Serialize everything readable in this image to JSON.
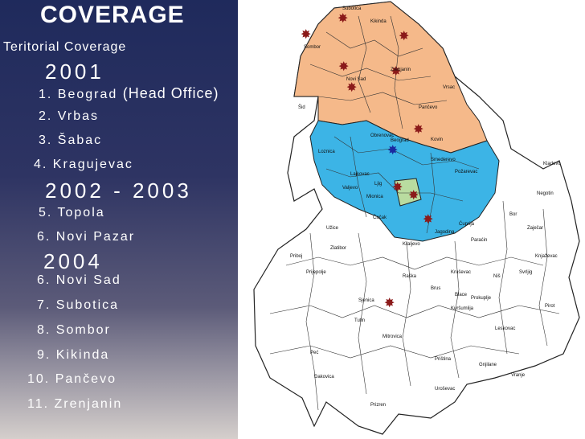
{
  "title": "COVERAGE",
  "subtitle": "Teritorial Coverage",
  "years": {
    "y2001": "2001",
    "y2002": "2002 - 2003",
    "y2004": "2004"
  },
  "offices": [
    {
      "num": "1.",
      "name": "Beograd",
      "note": "(Head Office)"
    },
    {
      "num": "2.",
      "name": "Vrbas"
    },
    {
      "num": "3.",
      "name": "Šabac"
    },
    {
      "num": "4.",
      "name": "Kragujevac"
    },
    {
      "num": "5.",
      "name": "Topola"
    },
    {
      "num": "6.",
      "name": "Novi Pazar"
    },
    {
      "num": "6.",
      "name": "Novi Sad"
    },
    {
      "num": "7.",
      "name": "Subotica"
    },
    {
      "num": "8.",
      "name": "Sombor"
    },
    {
      "num": "9.",
      "name": "Kikinda"
    },
    {
      "num": "10.",
      "name": "Pančevo"
    },
    {
      "num": "11.",
      "name": "Zrenjanin"
    }
  ],
  "map_labels": {
    "kikinda": "Kikinda",
    "zrenjanin": "Zrenjanin",
    "vrsac": "Vrsac",
    "sid": "Šid",
    "pancevo": "Pančevo",
    "kovin": "Kovin",
    "obrenovac": "Obrenovac",
    "smederevo": "Smederevo",
    "pozarevac": "Požarevac",
    "valjevo": "Valjevo",
    "kladovo": "Kladovo",
    "negotin": "Negotin",
    "zajecar": "Zaječar",
    "bor": "Bor",
    "uzice": "Užice",
    "cacak": "Čačak",
    "kraljevo": "Kraljevo",
    "krusevac": "Kruševac",
    "nis": "Niš",
    "pirot": "Pirot",
    "leskovac": "Leskovac",
    "vranje": "Vranje",
    "pristina": "Priština",
    "prizren": "Prizren",
    "pec": "Peć",
    "tutin": "Tutin",
    "sjenica": "Sjenica",
    "priboj": "Priboj",
    "prijepolje": "Prijepolje",
    "zlatibor": "Zlatibor",
    "raska": "Raška",
    "brus": "Brus",
    "blace": "Blace",
    "kursumlija": "Kuršumlija",
    "prokuplje": "Prokuplje",
    "mionica": "Mionica",
    "lajkovac": "Lajkovac",
    "ljig": "Ljig",
    "loznica": "Loznica",
    "paracin": "Paraćin",
    "cuprija": "Ćuprija",
    "jagodina": "Jagodina",
    "knjazevac": "Knjaževac",
    "svrljig": "Svrljig",
    "mitrovica": "Mitrovica",
    "gnjilane": "Gnjilane",
    "urosevac": "Uroševac",
    "djakovica": "Đakovica",
    "subotica": "Subotica",
    "sombor": "Sombor",
    "novisad": "Novi Sad",
    "beograd": "Beograd"
  }
}
